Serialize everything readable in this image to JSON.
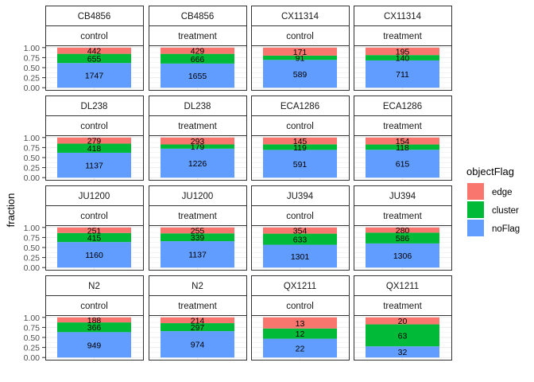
{
  "colors": {
    "edge": "#F8766D",
    "cluster": "#00BA38",
    "noFlag": "#619CFF",
    "strip_border": "#333333",
    "panel_border": "#333333",
    "grid": "#EBEBEB",
    "text": "#4D4D4D"
  },
  "chart_data": {
    "type": "bar",
    "stacked": true,
    "position": "fill",
    "ylabel": "fraction",
    "xlabel": "",
    "ylim": [
      0,
      1
    ],
    "yticks": [
      "0.00",
      "0.25",
      "0.50",
      "0.75",
      "1.00"
    ],
    "facet_rows": 4,
    "facet_cols": 4,
    "legend": {
      "title": "objectFlag",
      "position": "right",
      "entries": [
        "edge",
        "cluster",
        "noFlag"
      ]
    },
    "panels": [
      {
        "strain": "CB4856",
        "condition": "control",
        "edge": 442,
        "cluster": 655,
        "noFlag": 1747
      },
      {
        "strain": "CB4856",
        "condition": "treatment",
        "edge": 429,
        "cluster": 666,
        "noFlag": 1655
      },
      {
        "strain": "CX11314",
        "condition": "control",
        "edge": 171,
        "cluster": 91,
        "noFlag": 589
      },
      {
        "strain": "CX11314",
        "condition": "treatment",
        "edge": 195,
        "cluster": 140,
        "noFlag": 711
      },
      {
        "strain": "DL238",
        "condition": "control",
        "edge": 279,
        "cluster": 418,
        "noFlag": 1137
      },
      {
        "strain": "DL238",
        "condition": "treatment",
        "edge": 293,
        "cluster": 179,
        "noFlag": 1226
      },
      {
        "strain": "ECA1286",
        "condition": "control",
        "edge": 145,
        "cluster": 119,
        "noFlag": 591
      },
      {
        "strain": "ECA1286",
        "condition": "treatment",
        "edge": 154,
        "cluster": 118,
        "noFlag": 615
      },
      {
        "strain": "JU1200",
        "condition": "control",
        "edge": 251,
        "cluster": 415,
        "noFlag": 1160
      },
      {
        "strain": "JU1200",
        "condition": "treatment",
        "edge": 255,
        "cluster": 339,
        "noFlag": 1137
      },
      {
        "strain": "JU394",
        "condition": "control",
        "edge": 354,
        "cluster": 633,
        "noFlag": 1301
      },
      {
        "strain": "JU394",
        "condition": "treatment",
        "edge": 280,
        "cluster": 586,
        "noFlag": 1306
      },
      {
        "strain": "N2",
        "condition": "control",
        "edge": 188,
        "cluster": 366,
        "noFlag": 949
      },
      {
        "strain": "N2",
        "condition": "treatment",
        "edge": 214,
        "cluster": 297,
        "noFlag": 974
      },
      {
        "strain": "QX1211",
        "condition": "control",
        "edge": 13,
        "cluster": 12,
        "noFlag": 22
      },
      {
        "strain": "QX1211",
        "condition": "treatment",
        "edge": 20,
        "cluster": 63,
        "noFlag": 32
      }
    ]
  }
}
